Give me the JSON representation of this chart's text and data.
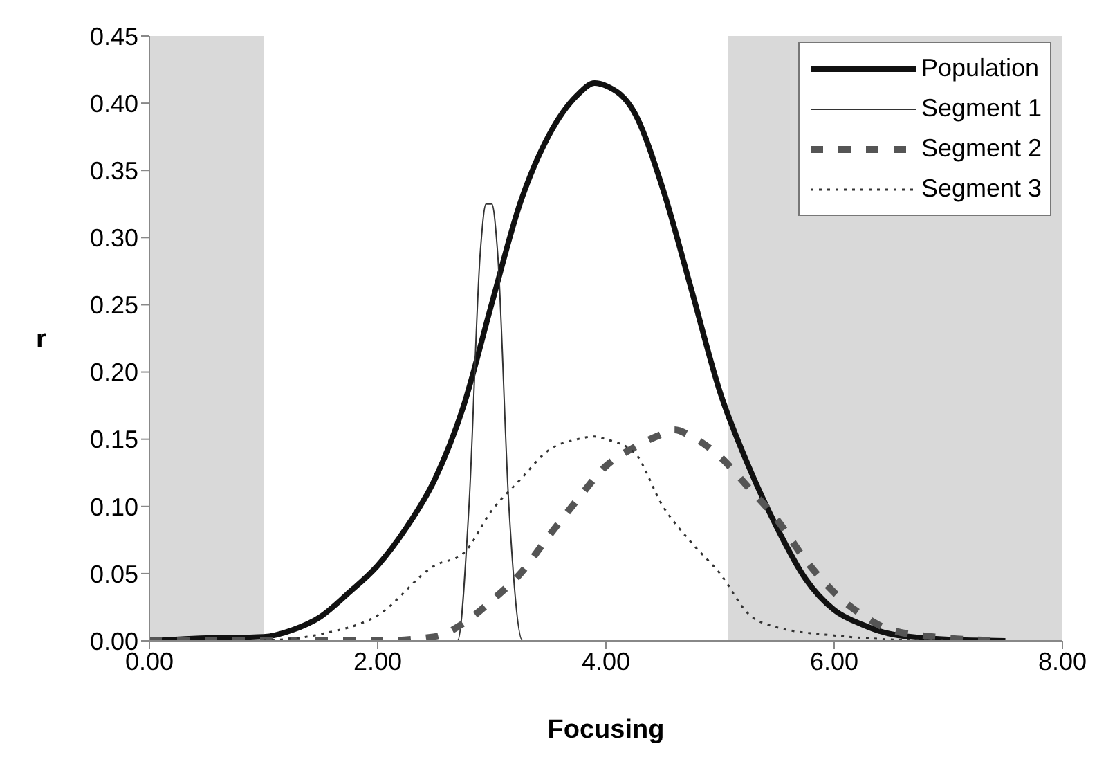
{
  "chart_data": {
    "type": "line",
    "xlabel": "Focusing",
    "ylabel": "r",
    "xlim": [
      0,
      8
    ],
    "xticks": [
      {
        "value": 0,
        "label": "0.00"
      },
      {
        "value": 2,
        "label": "2.00"
      },
      {
        "value": 4,
        "label": "4.00"
      },
      {
        "value": 6,
        "label": "6.00"
      },
      {
        "value": 8,
        "label": "8.00"
      }
    ],
    "ylim": [
      0,
      0.45
    ],
    "yticks": [
      {
        "value": 0,
        "label": "0.00"
      },
      {
        "value": 0.05,
        "label": "0.05"
      },
      {
        "value": 0.1,
        "label": "0.10"
      },
      {
        "value": 0.15,
        "label": "0.15"
      },
      {
        "value": 0.2,
        "label": "0.20"
      },
      {
        "value": 0.25,
        "label": "0.25"
      },
      {
        "value": 0.3,
        "label": "0.30"
      },
      {
        "value": 0.35,
        "label": "0.35"
      },
      {
        "value": 0.4,
        "label": "0.40"
      },
      {
        "value": 0.45,
        "label": "0.45"
      }
    ],
    "legend": "top right",
    "marker": "none",
    "bands": [
      {
        "axis": "x",
        "from": 0,
        "to": 1,
        "color": "#d9d9d9"
      },
      {
        "axis": "x",
        "from": 5.07,
        "to": 8,
        "color": "#d9d9d9"
      }
    ],
    "series": [
      {
        "name": "Population",
        "color": "#111111",
        "line_style": "solid",
        "x": [
          0,
          0.5,
          1,
          1.25,
          1.5,
          1.75,
          2,
          2.25,
          2.5,
          2.75,
          3,
          3.25,
          3.5,
          3.75,
          3.9,
          4,
          4.25,
          4.5,
          4.75,
          5,
          5.25,
          5.5,
          5.75,
          6,
          6.25,
          6.5,
          7,
          7.5
        ],
        "values": [
          0,
          0.002,
          0.003,
          0.008,
          0.018,
          0.036,
          0.056,
          0.084,
          0.12,
          0.174,
          0.251,
          0.326,
          0.376,
          0.406,
          0.415,
          0.413,
          0.393,
          0.336,
          0.261,
          0.185,
          0.13,
          0.084,
          0.046,
          0.023,
          0.012,
          0.005,
          0.001,
          0
        ]
      },
      {
        "name": "Segment 1",
        "color": "#333333",
        "line_style": "solid",
        "x": [
          0,
          2.7,
          2.8,
          2.9,
          2.95,
          3,
          3.05,
          3.15,
          3.27,
          7.5
        ],
        "values": [
          0,
          0,
          0.1,
          0.29,
          0.325,
          0.325,
          0.29,
          0.1,
          0,
          0
        ]
      },
      {
        "name": "Segment 2",
        "color": "#555555",
        "line_style": "dashed",
        "x": [
          0,
          2,
          2.5,
          2.75,
          3,
          3.25,
          3.5,
          3.75,
          4,
          4.25,
          4.5,
          4.6,
          4.75,
          5,
          5.25,
          5.5,
          5.75,
          6,
          6.25,
          6.5,
          7,
          7.5
        ],
        "values": [
          0,
          0,
          0.003,
          0.013,
          0.03,
          0.05,
          0.078,
          0.105,
          0.13,
          0.144,
          0.154,
          0.157,
          0.152,
          0.137,
          0.114,
          0.09,
          0.06,
          0.036,
          0.019,
          0.008,
          0.002,
          0
        ]
      },
      {
        "name": "Segment 3",
        "color": "#333333",
        "line_style": "dotted",
        "x": [
          1,
          1.5,
          2,
          2.5,
          2.75,
          3,
          3.25,
          3.5,
          3.75,
          3.9,
          4,
          4.25,
          4.5,
          4.75,
          5,
          5.25,
          5.5,
          6,
          6.5,
          7
        ],
        "values": [
          0,
          0.005,
          0.019,
          0.056,
          0.065,
          0.097,
          0.12,
          0.142,
          0.15,
          0.152,
          0.15,
          0.14,
          0.1,
          0.073,
          0.05,
          0.02,
          0.01,
          0.004,
          0.001,
          0
        ]
      }
    ]
  }
}
